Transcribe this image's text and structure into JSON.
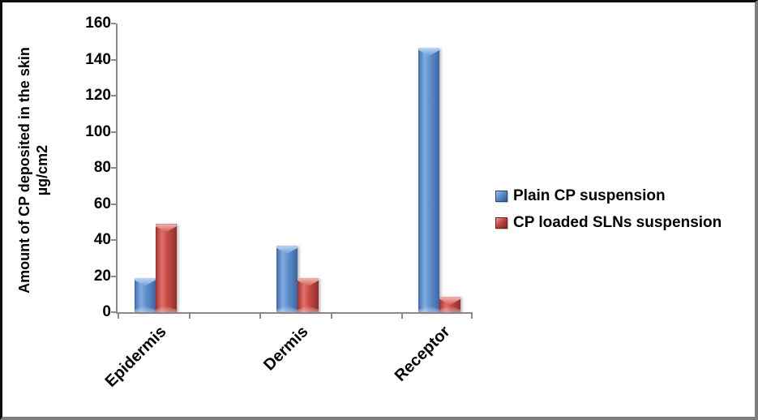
{
  "chart_data": {
    "type": "bar",
    "title": "",
    "categories": [
      "Epidermis",
      "Dermis",
      "Receptor"
    ],
    "series": [
      {
        "name": "Plain CP suspension",
        "color": "#4f81bd",
        "values": [
          19,
          36.8,
          146.5
        ]
      },
      {
        "name": "CP loaded SLNs suspension",
        "color": "#be4b48",
        "values": [
          48.8,
          18.8,
          8.5
        ]
      }
    ],
    "xlabel": "",
    "ylabel_line1": "Amount of CP deposited in the skin",
    "ylabel_line2": "µg/cm2",
    "ylim": [
      0,
      160
    ],
    "yticks": [
      0,
      20,
      40,
      60,
      80,
      100,
      120,
      140,
      160
    ],
    "grid": false,
    "legend_position": "right",
    "x_tick_label_rotation_deg": 45,
    "axis_color": "#8a8a8a",
    "empty_slots_between_categories": true
  }
}
